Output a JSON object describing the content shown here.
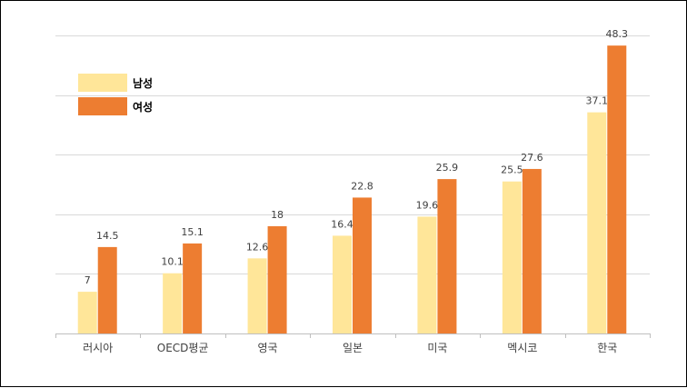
{
  "chart_data": {
    "type": "bar",
    "categories": [
      "러시아",
      "OECD평균",
      "영국",
      "일본",
      "미국",
      "멕시코",
      "한국"
    ],
    "series": [
      {
        "name": "남성",
        "values": [
          7,
          10.1,
          12.6,
          16.4,
          19.6,
          25.5,
          37.1
        ],
        "color": "#FFE699"
      },
      {
        "name": "여성",
        "values": [
          14.5,
          15.1,
          18,
          22.8,
          25.9,
          27.6,
          48.3
        ],
        "color": "#ED7D31"
      }
    ],
    "data_labels": [
      [
        "7",
        "10.1",
        "12.6",
        "16.4",
        "19.6",
        "25.5",
        "37.1"
      ],
      [
        "14.5",
        "15.1",
        "18",
        "22.8",
        "25.9",
        "27.6",
        "48.3"
      ]
    ],
    "title": "",
    "xlabel": "",
    "ylabel": "",
    "ylim": [
      0,
      50
    ],
    "ytick_step": 10,
    "grid": true,
    "legend": "top-left"
  }
}
